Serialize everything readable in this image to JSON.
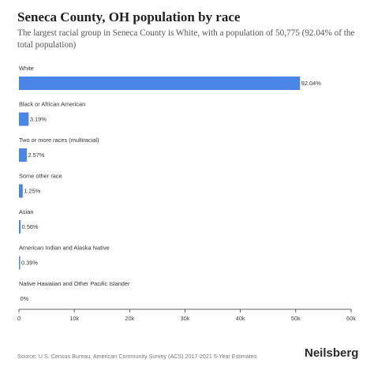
{
  "header": {
    "title": "Seneca County, OH population by race",
    "subtitle": "The largest racial group in Seneca County is White, with a population of 50,775 (92.04% of the total population)"
  },
  "chart_data": {
    "type": "bar",
    "orientation": "horizontal",
    "categories": [
      "White",
      "Black or African American",
      "Two or more races (multiracial)",
      "Some other race",
      "Asian",
      "American Indian and Alaska Native",
      "Native Hawaiian and Other Pacific Islander"
    ],
    "values": [
      50775,
      1760,
      1418,
      690,
      309,
      215,
      0
    ],
    "value_labels": [
      "92.04%",
      "3.19%",
      "2.57%",
      "1.25%",
      "0.56%",
      "0.39%",
      "0%"
    ],
    "xlim": [
      0,
      60000
    ],
    "xticks": [
      0,
      10000,
      20000,
      30000,
      40000,
      50000,
      60000
    ],
    "xtick_labels": [
      "0",
      "10k",
      "20k",
      "30k",
      "40k",
      "50k",
      "60k"
    ],
    "bar_color": "#4a86e8",
    "grid": false
  },
  "footer": {
    "source": "Source: U.S. Census Bureau, American Community Survey (ACS) 2017-2021 5-Year Estimates",
    "brand": "Neilsberg"
  }
}
